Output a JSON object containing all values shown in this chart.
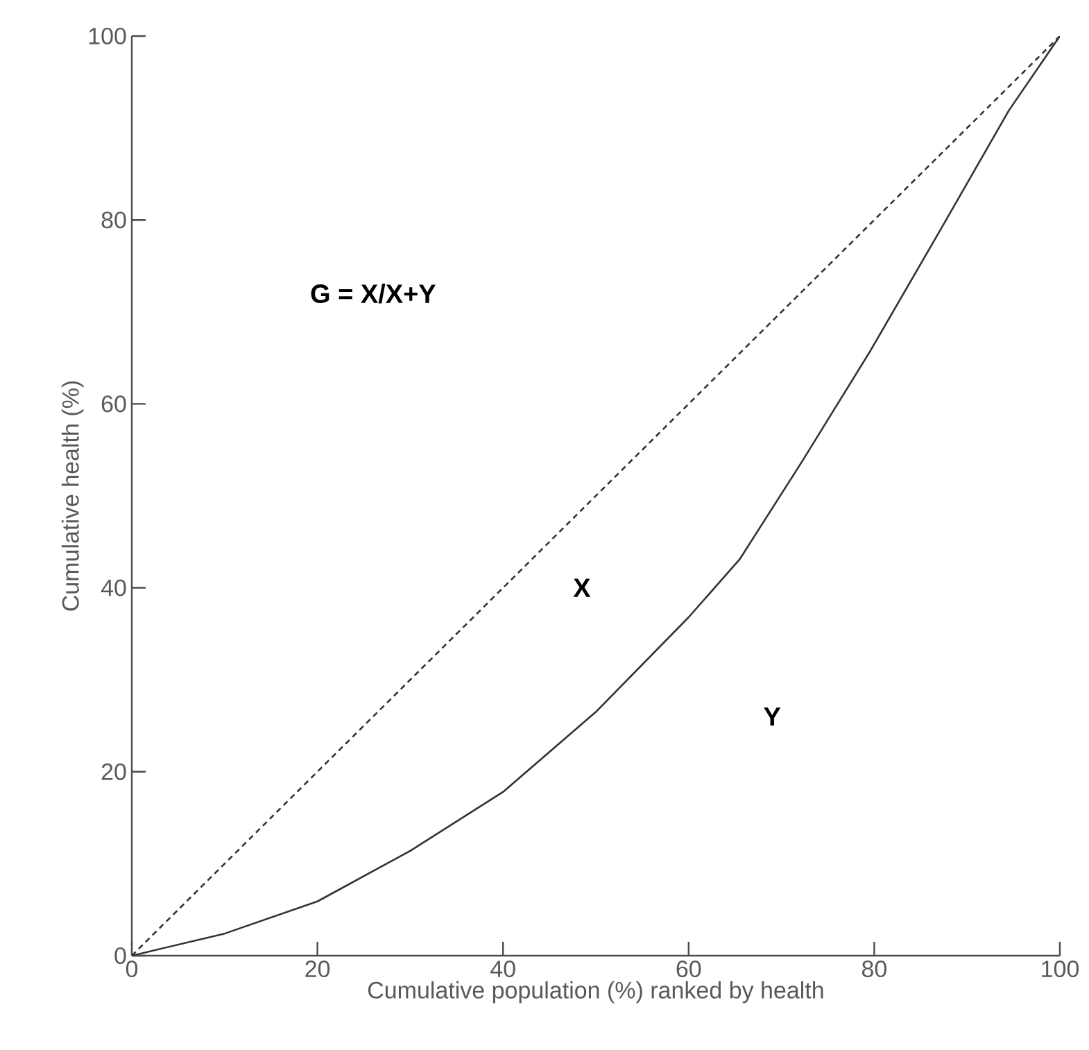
{
  "chart_data": {
    "type": "line",
    "xlabel": "Cumulative population (%) ranked by health",
    "ylabel": "Cumulative health (%)",
    "xlim": [
      0,
      100
    ],
    "ylim": [
      0,
      100
    ],
    "xticks": [
      0,
      20,
      40,
      60,
      80,
      100
    ],
    "yticks": [
      0,
      20,
      40,
      60,
      80,
      100
    ],
    "series": [
      {
        "color": "#333333",
        "line_style": "dashed",
        "x": [
          0,
          100
        ],
        "values": [
          0,
          100
        ]
      },
      {
        "color": "#333333",
        "line_style": "solid",
        "x": [
          0,
          10,
          20,
          30,
          40,
          50,
          60,
          65.5,
          72.2,
          79.6,
          87,
          94.5,
          100
        ],
        "values": [
          0,
          2.4,
          5.9,
          11.4,
          17.8,
          26.5,
          36.8,
          43.1,
          53.7,
          65.8,
          78.7,
          91.9,
          100
        ]
      }
    ],
    "annotations": [
      "G = X/X+Y",
      "X",
      "Y"
    ]
  }
}
